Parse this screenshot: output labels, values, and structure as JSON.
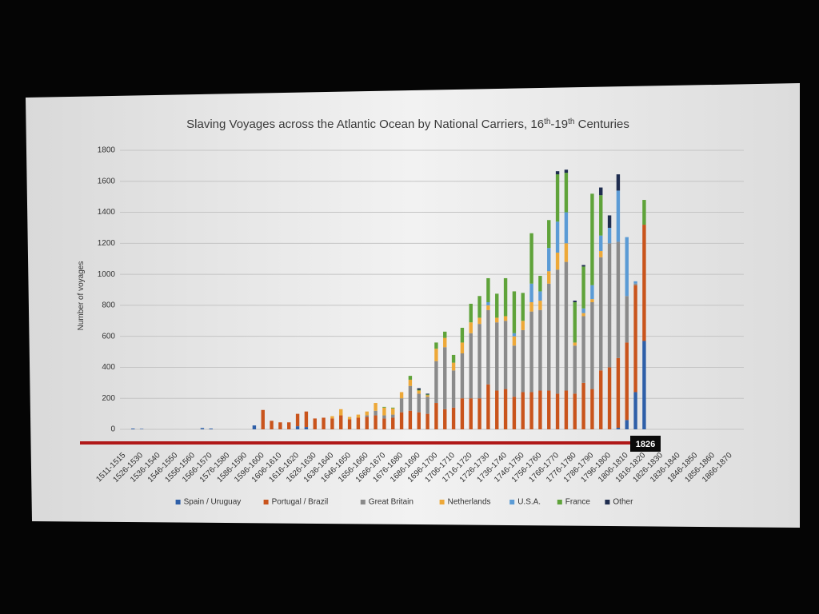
{
  "chart_data": {
    "type": "stacked-bar",
    "title_segments": [
      {
        "text": "Slaving Voyages across the Atlantic Ocean by National Carriers, 16"
      },
      {
        "text": "th",
        "sup": true
      },
      {
        "text": "-19"
      },
      {
        "text": "th",
        "sup": true
      },
      {
        "text": " Centuries"
      }
    ],
    "y_label": "Number of voyages",
    "marker_label": "1826",
    "ylim": [
      0,
      1800
    ],
    "yticks": [
      0,
      200,
      400,
      600,
      800,
      1000,
      1200,
      1400,
      1600,
      1800
    ],
    "grid": true,
    "legend": "bottom",
    "categories": [
      "1511-1515",
      null,
      "1526-1530",
      null,
      "1536-1540",
      null,
      "1546-1550",
      null,
      "1556-1560",
      null,
      "1566-1570",
      null,
      "1576-1580",
      null,
      "1586-1590",
      null,
      "1596-1600",
      null,
      "1606-1610",
      null,
      "1616-1620",
      null,
      "1626-1630",
      null,
      "1636-1640",
      null,
      "1646-1650",
      null,
      "1656-1660",
      null,
      "1666-1670",
      null,
      "1676-1680",
      null,
      "1686-1690",
      null,
      "1696-1700",
      null,
      "1706-1710",
      null,
      "1716-1720",
      null,
      "1726-1730",
      null,
      "1736-1740",
      null,
      "1746-1750",
      null,
      "1756-1760",
      null,
      "1766-1770",
      null,
      "1776-1780",
      null,
      "1786-1790",
      null,
      "1796-1800",
      null,
      "1806-1810",
      null,
      "1816-1820",
      null,
      "1826-1830",
      null,
      "1836-1840",
      null,
      "1846-1850",
      null,
      "1856-1860",
      null,
      "1866-1870",
      null
    ],
    "series": [
      {
        "name": "Spain / Uruguay",
        "color": "#2e5fa8",
        "values": [
          0,
          5,
          3,
          0,
          0,
          0,
          0,
          0,
          0,
          8,
          5,
          0,
          0,
          0,
          0,
          25,
          0,
          0,
          0,
          0,
          20,
          15,
          0,
          0,
          0,
          0,
          0,
          0,
          0,
          0,
          0,
          0,
          0,
          0,
          0,
          0,
          0,
          0,
          0,
          0,
          0,
          0,
          0,
          0,
          0,
          0,
          0,
          0,
          0,
          0,
          0,
          0,
          0,
          0,
          0,
          0,
          0,
          10,
          60,
          240,
          570,
          0,
          0,
          0,
          0,
          0,
          0,
          0,
          0,
          0,
          0,
          0
        ]
      },
      {
        "name": "Portugal / Brazil",
        "color": "#c9541c",
        "values": [
          0,
          0,
          0,
          0,
          0,
          0,
          0,
          0,
          0,
          0,
          0,
          0,
          0,
          0,
          0,
          0,
          125,
          55,
          45,
          45,
          80,
          100,
          70,
          75,
          70,
          90,
          65,
          75,
          80,
          90,
          70,
          75,
          110,
          120,
          110,
          100,
          170,
          130,
          140,
          200,
          200,
          200,
          290,
          250,
          260,
          210,
          240,
          240,
          250,
          250,
          230,
          250,
          230,
          300,
          260,
          380,
          400,
          450,
          500,
          690,
          750,
          0,
          0,
          0,
          0,
          0,
          0,
          0,
          0,
          0,
          0,
          0
        ]
      },
      {
        "name": "Great Britain",
        "color": "#8a8a8a",
        "values": [
          0,
          0,
          0,
          0,
          0,
          0,
          0,
          0,
          0,
          0,
          0,
          0,
          0,
          0,
          0,
          0,
          0,
          0,
          0,
          0,
          0,
          0,
          0,
          0,
          0,
          0,
          0,
          0,
          10,
          30,
          20,
          20,
          90,
          160,
          120,
          110,
          270,
          400,
          240,
          290,
          420,
          480,
          480,
          440,
          440,
          330,
          400,
          520,
          520,
          690,
          800,
          830,
          310,
          430,
          560,
          730,
          800,
          750,
          300,
          10,
          0,
          0,
          0,
          0,
          0,
          0,
          0,
          0,
          0,
          0,
          0,
          0
        ]
      },
      {
        "name": "Netherlands",
        "color": "#eda838",
        "values": [
          0,
          0,
          0,
          0,
          0,
          0,
          0,
          0,
          0,
          0,
          0,
          0,
          0,
          0,
          0,
          0,
          0,
          0,
          0,
          0,
          0,
          0,
          0,
          0,
          15,
          40,
          15,
          20,
          25,
          50,
          50,
          40,
          40,
          40,
          20,
          10,
          80,
          60,
          50,
          70,
          70,
          40,
          30,
          30,
          30,
          60,
          60,
          60,
          60,
          80,
          110,
          120,
          20,
          20,
          20,
          40,
          0,
          0,
          0,
          0,
          0,
          0,
          0,
          0,
          0,
          0,
          0,
          0,
          0,
          0,
          0,
          0
        ]
      },
      {
        "name": "U.S.A.",
        "color": "#5b9bd5",
        "values": [
          0,
          0,
          0,
          0,
          0,
          0,
          0,
          0,
          0,
          0,
          0,
          0,
          0,
          0,
          0,
          0,
          0,
          0,
          0,
          0,
          0,
          0,
          0,
          0,
          0,
          0,
          0,
          0,
          0,
          0,
          0,
          0,
          0,
          0,
          0,
          0,
          0,
          0,
          0,
          0,
          0,
          0,
          20,
          0,
          0,
          20,
          0,
          120,
          60,
          150,
          200,
          200,
          0,
          30,
          90,
          100,
          100,
          330,
          380,
          15,
          0,
          0,
          0,
          0,
          0,
          0,
          0,
          0,
          0,
          0,
          0,
          0
        ]
      },
      {
        "name": "France",
        "color": "#5fa33a",
        "values": [
          0,
          0,
          0,
          0,
          0,
          0,
          0,
          0,
          0,
          0,
          0,
          0,
          0,
          0,
          0,
          0,
          0,
          0,
          0,
          0,
          0,
          0,
          0,
          0,
          0,
          0,
          0,
          0,
          0,
          0,
          5,
          5,
          0,
          25,
          5,
          5,
          40,
          40,
          50,
          95,
          120,
          140,
          155,
          155,
          245,
          270,
          180,
          325,
          100,
          180,
          305,
          255,
          260,
          270,
          590,
          260,
          0,
          0,
          0,
          0,
          160,
          0,
          0,
          0,
          0,
          0,
          0,
          0,
          0,
          0,
          0,
          0
        ]
      },
      {
        "name": "Other",
        "color": "#1f2d4f",
        "values": [
          0,
          0,
          0,
          0,
          0,
          0,
          0,
          0,
          0,
          0,
          0,
          0,
          0,
          0,
          0,
          0,
          0,
          0,
          0,
          0,
          0,
          0,
          0,
          0,
          0,
          0,
          0,
          0,
          0,
          0,
          0,
          0,
          0,
          0,
          10,
          5,
          0,
          0,
          0,
          0,
          0,
          0,
          0,
          0,
          0,
          0,
          0,
          0,
          0,
          0,
          20,
          20,
          10,
          10,
          0,
          50,
          80,
          105,
          0,
          0,
          0,
          0,
          0,
          0,
          0,
          0,
          0,
          0,
          0,
          0,
          0,
          0
        ]
      }
    ]
  }
}
